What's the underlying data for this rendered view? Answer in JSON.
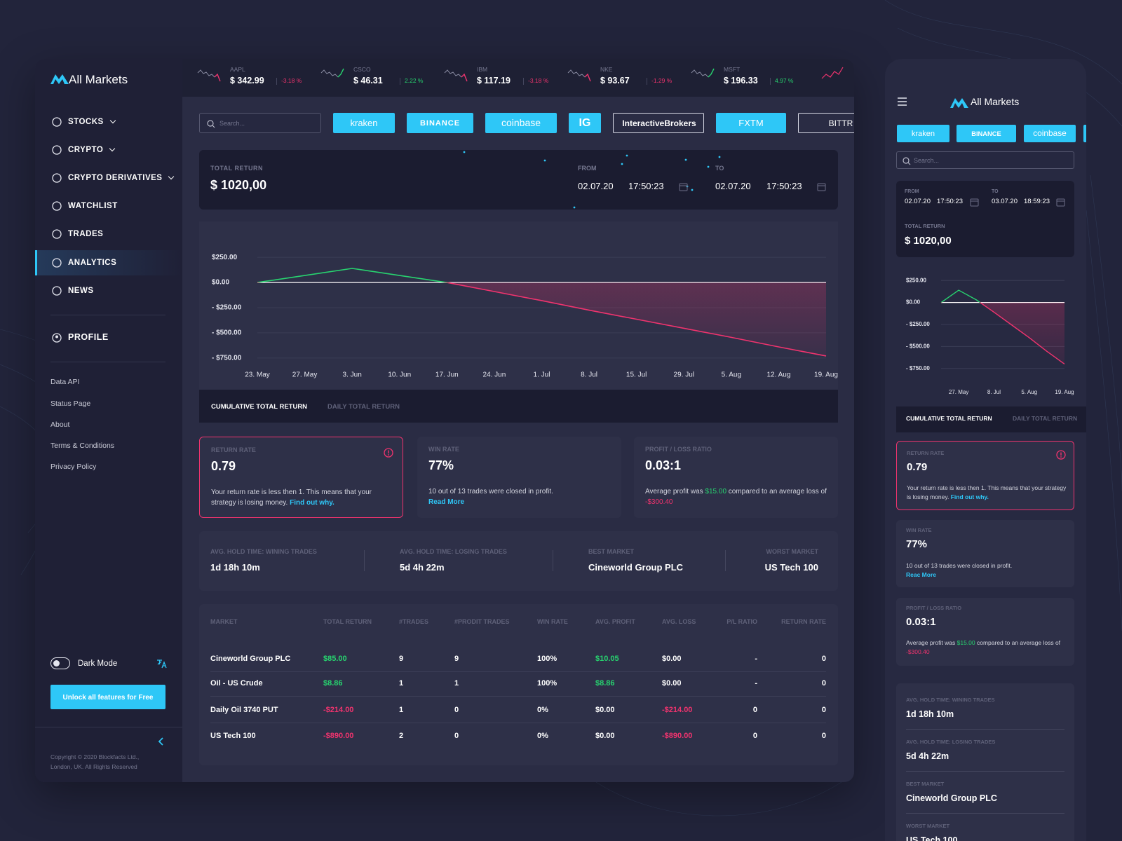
{
  "brand": "All Markets",
  "tickers": [
    {
      "symbol": "AAPL",
      "price": "$ 342.99",
      "change": "-3.18 %",
      "color": "#f0336e"
    },
    {
      "symbol": "CSCO",
      "price": "$ 46.31",
      "change": "2.22 %",
      "color": "#27d36f"
    },
    {
      "symbol": "IBM",
      "price": "$ 117.19",
      "change": "-3.18 %",
      "color": "#f0336e"
    },
    {
      "symbol": "NKE",
      "price": "$ 93.67",
      "change": "-1.29 %",
      "color": "#f0336e"
    },
    {
      "symbol": "MSFT",
      "price": "$ 196.33",
      "change": "4.97 %",
      "color": "#27d36f"
    }
  ],
  "nav": {
    "items": [
      "STOCKS",
      "CRYPTO",
      "CRYPTO DERIVATIVES",
      "WATCHLIST",
      "TRADES",
      "ANALYTICS",
      "NEWS"
    ],
    "profile": "PROFILE",
    "links": [
      "Data API",
      "Status Page",
      "About",
      "Terms & Conditions",
      "Privacy Policy"
    ],
    "dark_mode": "Dark Mode",
    "unlock": "Unlock all features for Free",
    "copyright": [
      "Copyright © 2020 Blockfacts Ltd.,",
      "London, UK. All Rights Reserved"
    ]
  },
  "search": "Search...",
  "exchanges": [
    "kraken",
    "BINANCE",
    "coinbase",
    "IG",
    "InteractiveBrokers",
    "FXTM",
    "BITTR"
  ],
  "summary": {
    "total_return_label": "TOTAL RETURN",
    "total_return": "$ 1020,00",
    "from_label": "FROM",
    "from_date": "02.07.20",
    "from_time": "17:50:23",
    "to_label": "TO",
    "to_date": "02.07.20",
    "to_time": "17:50:23"
  },
  "tabs": [
    "CUMULATIVE TOTAL RETURN",
    "DAILY TOTAL RETURN"
  ],
  "cards": {
    "return_rate": {
      "label": "RETURN RATE",
      "value": "0.79",
      "text": "Your return rate is less then 1. This means that your strategy is losing money.",
      "link": "Find out why."
    },
    "win_rate": {
      "label": "WIN RATE",
      "value": "77%",
      "text": "10 out of 13 trades were closed in profit.",
      "link": "Read More"
    },
    "pl_ratio": {
      "label": "PROFIT / LOSS RATIO",
      "value": "0.03:1",
      "text": [
        "Average profit was ",
        "$15.00",
        " compared to an average loss of ",
        "-$300.40"
      ]
    }
  },
  "stats": [
    {
      "label": "AVG. HOLD TIME: WINING TRADES",
      "value": "1d 18h 10m"
    },
    {
      "label": "AVG. HOLD TIME: LOSING TRADES",
      "value": "5d 4h 22m"
    },
    {
      "label": "BEST MARKET",
      "value": "Cineworld Group PLC"
    },
    {
      "label": "WORST MARKET",
      "value": "US Tech 100"
    }
  ],
  "table": {
    "header": [
      "MARKET",
      "TOTAL RETURN",
      "#TRADES",
      "#PRODIT TRADES",
      "WIN RATE",
      "AVG. PROFIT",
      "AVG. LOSS",
      "P/L RATIO",
      "RETURN RATE"
    ],
    "rows": [
      [
        "Cineworld Group PLC",
        "$85.00",
        "9",
        "9",
        "100%",
        "$10.05",
        "$0.00",
        "-",
        "0"
      ],
      [
        "Oil - US Crude",
        "$8.86",
        "1",
        "1",
        "100%",
        "$8.86",
        "$0.00",
        "-",
        "0"
      ],
      [
        "Daily Oil 3740 PUT",
        "-$214.00",
        "1",
        "0",
        "0%",
        "$0.00",
        "-$214.00",
        "0",
        "0"
      ],
      [
        "US Tech 100",
        "-$890.00",
        "2",
        "0",
        "0%",
        "$0.00",
        "-$890.00",
        "0",
        "0"
      ]
    ],
    "colors": {
      "positive": "#27d36f",
      "negative": "#f0336e"
    }
  },
  "mobile": {
    "to_date": "03.07.20",
    "to_time": "18:59:23",
    "win_link": "Reac More"
  },
  "chart_data": [
    {
      "type": "line",
      "categories": [
        "23. May",
        "27. May",
        "3. Jun",
        "10. Jun",
        "17. Jun",
        "24. Jun",
        "1. Jul",
        "8. Jul",
        "15. Jul",
        "29. Jul",
        "5. Aug",
        "12. Aug",
        "19. Aug"
      ],
      "values": [
        0,
        70,
        140,
        70,
        0,
        -90,
        -180,
        -275,
        -365,
        -455,
        -545,
        -640,
        -730
      ],
      "ylim": [
        -800,
        300
      ],
      "yticks": [
        {
          "value": 250,
          "label": "$250.00"
        },
        {
          "value": 0,
          "label": "$0.00"
        },
        {
          "value": -250,
          "label": "- $250.00"
        },
        {
          "value": -500,
          "label": "- $500.00"
        },
        {
          "value": -750,
          "label": "- $750.00"
        }
      ],
      "grid": true,
      "grid_color": "#3a3c55",
      "zero_color": "#ffffff",
      "colors": {
        "positive": "#27d36f",
        "negative": "#f0336e"
      }
    },
    {
      "type": "line",
      "categories": [
        null,
        "27. May",
        null,
        "8. Jul",
        null,
        "5. Aug",
        null,
        "19. Aug"
      ],
      "values": [
        0,
        140,
        30,
        -110,
        -255,
        -400,
        -555,
        -700
      ],
      "ylim": [
        -800,
        300
      ],
      "yticks": [
        {
          "value": 250,
          "label": "$250.00"
        },
        {
          "value": 0,
          "label": "$0.00"
        },
        {
          "value": -250,
          "label": "- $250.00"
        },
        {
          "value": -500,
          "label": "- $500.00"
        },
        {
          "value": -750,
          "label": "- $750.00"
        }
      ],
      "grid": true,
      "grid_color": "#3a3c55",
      "zero_color": "#ffffff",
      "colors": {
        "positive": "#27d36f",
        "negative": "#f0336e"
      }
    }
  ]
}
